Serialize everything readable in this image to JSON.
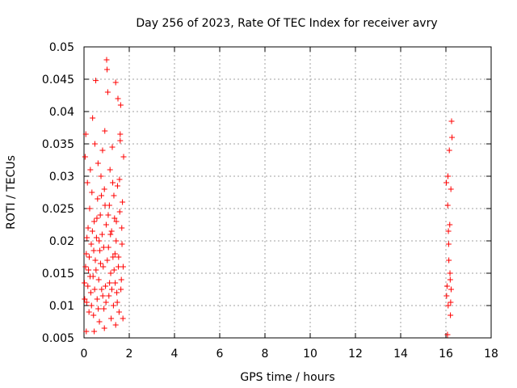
{
  "chart_data": {
    "type": "scatter",
    "title": "Day 256 of 2023, Rate Of TEC Index for receiver avry",
    "xlabel": "GPS time / hours",
    "ylabel": "ROTI / TECUs",
    "xlim": [
      0,
      18
    ],
    "ylim": [
      0.005,
      0.05
    ],
    "x_ticks": [
      0,
      2,
      4,
      6,
      8,
      10,
      12,
      14,
      16,
      18
    ],
    "x_tick_labels": [
      "0",
      "2",
      "4",
      "6",
      "8",
      "10",
      "12",
      "14",
      "16",
      "18"
    ],
    "y_ticks": [
      0.005,
      0.01,
      0.015,
      0.02,
      0.025,
      0.03,
      0.035,
      0.04,
      0.045,
      0.05
    ],
    "y_tick_labels": [
      "0.005",
      "0.01",
      "0.015",
      "0.02",
      "0.025",
      "0.03",
      "0.035",
      "0.04",
      "0.045",
      "0.05"
    ],
    "grid": true,
    "marker": "+",
    "color": "#ff0000",
    "series": [
      {
        "name": "ROTI",
        "points": [
          [
            0.02,
            0.0135
          ],
          [
            0.05,
            0.033
          ],
          [
            0.08,
            0.0365
          ],
          [
            0.1,
            0.018
          ],
          [
            0.12,
            0.0105
          ],
          [
            0.15,
            0.029
          ],
          [
            0.18,
            0.022
          ],
          [
            0.2,
            0.0155
          ],
          [
            0.22,
            0.009
          ],
          [
            0.25,
            0.025
          ],
          [
            0.28,
            0.031
          ],
          [
            0.3,
            0.012
          ],
          [
            0.32,
            0.0195
          ],
          [
            0.35,
            0.0275
          ],
          [
            0.38,
            0.039
          ],
          [
            0.4,
            0.0145
          ],
          [
            0.42,
            0.0085
          ],
          [
            0.45,
            0.023
          ],
          [
            0.48,
            0.035
          ],
          [
            0.5,
            0.017
          ],
          [
            0.52,
            0.0448
          ],
          [
            0.55,
            0.0205
          ],
          [
            0.58,
            0.011
          ],
          [
            0.6,
            0.0265
          ],
          [
            0.62,
            0.032
          ],
          [
            0.65,
            0.014
          ],
          [
            0.68,
            0.0075
          ],
          [
            0.7,
            0.0185
          ],
          [
            0.72,
            0.024
          ],
          [
            0.75,
            0.03
          ],
          [
            0.78,
            0.0125
          ],
          [
            0.8,
            0.021
          ],
          [
            0.82,
            0.034
          ],
          [
            0.85,
            0.016
          ],
          [
            0.88,
            0.0095
          ],
          [
            0.9,
            0.028
          ],
          [
            0.92,
            0.037
          ],
          [
            0.95,
            0.013
          ],
          [
            0.98,
            0.0225
          ],
          [
            1.0,
            0.048
          ],
          [
            1.02,
            0.0465
          ],
          [
            1.05,
            0.043
          ],
          [
            1.08,
            0.019
          ],
          [
            1.1,
            0.0115
          ],
          [
            1.12,
            0.0255
          ],
          [
            1.15,
            0.031
          ],
          [
            1.18,
            0.015
          ],
          [
            1.2,
            0.008
          ],
          [
            1.22,
            0.0215
          ],
          [
            1.25,
            0.0345
          ],
          [
            1.28,
            0.0175
          ],
          [
            1.3,
            0.01
          ],
          [
            1.32,
            0.027
          ],
          [
            1.35,
            0.0235
          ],
          [
            1.38,
            0.0135
          ],
          [
            1.4,
            0.0445
          ],
          [
            1.42,
            0.02
          ],
          [
            1.45,
            0.012
          ],
          [
            1.48,
            0.0285
          ],
          [
            1.5,
            0.042
          ],
          [
            1.52,
            0.016
          ],
          [
            1.55,
            0.009
          ],
          [
            1.58,
            0.0245
          ],
          [
            1.6,
            0.0355
          ],
          [
            1.62,
            0.041
          ],
          [
            1.65,
            0.014
          ],
          [
            1.68,
            0.0195
          ],
          [
            1.7,
            0.026
          ],
          [
            1.72,
            0.008
          ],
          [
            1.75,
            0.033
          ],
          [
            0.03,
            0.011
          ],
          [
            0.07,
            0.016
          ],
          [
            0.13,
            0.0205
          ],
          [
            0.17,
            0.013
          ],
          [
            0.23,
            0.0175
          ],
          [
            0.27,
            0.0145
          ],
          [
            0.33,
            0.01
          ],
          [
            0.37,
            0.0215
          ],
          [
            0.43,
            0.0185
          ],
          [
            0.47,
            0.0125
          ],
          [
            0.53,
            0.0155
          ],
          [
            0.57,
            0.0235
          ],
          [
            0.63,
            0.0095
          ],
          [
            0.67,
            0.02
          ],
          [
            0.73,
            0.0165
          ],
          [
            0.77,
            0.027
          ],
          [
            0.83,
            0.0115
          ],
          [
            0.87,
            0.019
          ],
          [
            0.93,
            0.0255
          ],
          [
            0.97,
            0.0105
          ],
          [
            1.03,
            0.017
          ],
          [
            1.07,
            0.024
          ],
          [
            1.13,
            0.0135
          ],
          [
            1.17,
            0.021
          ],
          [
            1.23,
            0.0125
          ],
          [
            1.27,
            0.029
          ],
          [
            1.33,
            0.0155
          ],
          [
            1.37,
            0.018
          ],
          [
            1.43,
            0.023
          ],
          [
            1.47,
            0.0105
          ],
          [
            1.53,
            0.0175
          ],
          [
            1.57,
            0.0295
          ],
          [
            1.63,
            0.0125
          ],
          [
            1.67,
            0.022
          ],
          [
            1.73,
            0.016
          ],
          [
            0.1,
            0.006
          ],
          [
            0.45,
            0.006
          ],
          [
            0.9,
            0.0065
          ],
          [
            1.4,
            0.007
          ],
          [
            1.6,
            0.0365
          ],
          [
            16.02,
            0.029
          ],
          [
            16.05,
            0.013
          ],
          [
            16.08,
            0.0255
          ],
          [
            16.1,
            0.01
          ],
          [
            16.12,
            0.0195
          ],
          [
            16.15,
            0.034
          ],
          [
            16.18,
            0.015
          ],
          [
            16.2,
            0.0085
          ],
          [
            16.22,
            0.028
          ],
          [
            16.25,
            0.0385
          ],
          [
            16.03,
            0.0115
          ],
          [
            16.07,
            0.0055
          ],
          [
            16.13,
            0.017
          ],
          [
            16.17,
            0.0225
          ],
          [
            16.23,
            0.0125
          ],
          [
            16.27,
            0.036
          ],
          [
            16.09,
            0.03
          ],
          [
            16.19,
            0.014
          ],
          [
            16.11,
            0.0215
          ],
          [
            16.21,
            0.0105
          ]
        ]
      }
    ]
  }
}
